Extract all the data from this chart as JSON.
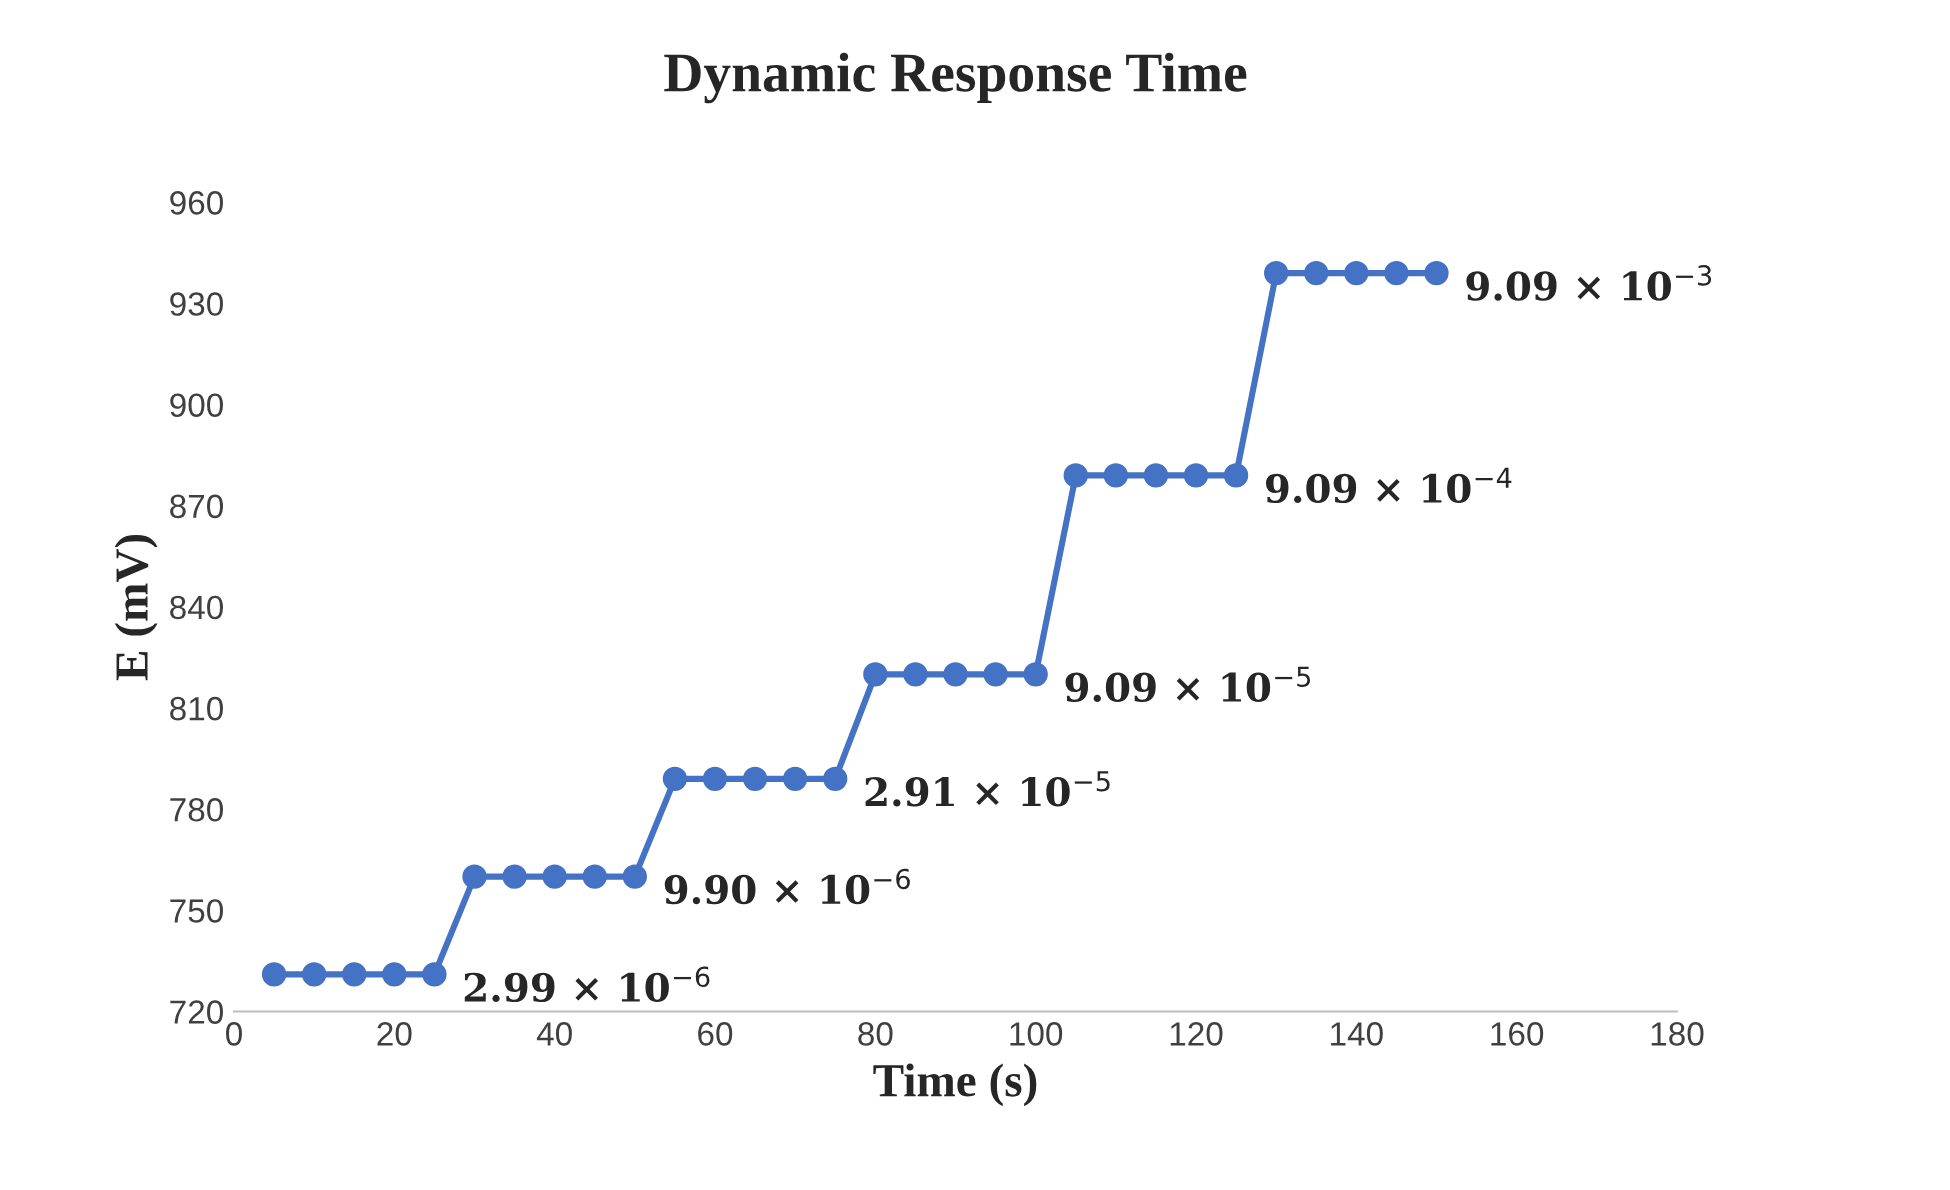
{
  "chart_data": {
    "type": "line",
    "title": "Dynamic Response Time",
    "xlabel": "Time (s)",
    "ylabel": "E (mV)",
    "x": [
      5,
      10,
      15,
      20,
      25,
      30,
      35,
      40,
      45,
      50,
      55,
      60,
      65,
      70,
      75,
      80,
      85,
      90,
      95,
      100,
      105,
      110,
      115,
      120,
      125,
      130,
      135,
      140,
      145,
      150
    ],
    "series": [
      {
        "color": "#4472c4",
        "values": [
          731,
          731,
          731,
          731,
          731,
          760,
          760,
          760,
          760,
          760,
          789,
          789,
          789,
          789,
          789,
          820,
          820,
          820,
          820,
          820,
          879,
          879,
          879,
          879,
          879,
          939,
          939,
          939,
          939,
          939
        ]
      }
    ],
    "xlim": [
      0,
      180
    ],
    "xticks": [
      0,
      20,
      40,
      60,
      80,
      100,
      120,
      140,
      160,
      180
    ],
    "ylim": [
      720,
      960
    ],
    "yticks": [
      720,
      750,
      780,
      810,
      840,
      870,
      900,
      930,
      960
    ],
    "marker": "circle",
    "line_style": "solid",
    "grid": false,
    "legend": false,
    "annotations": [
      {
        "text": "2.99 × 10$^{−6}$",
        "x": 25,
        "y": 731
      },
      {
        "text": "9.90 × 10$^{−6}$",
        "x": 50,
        "y": 760
      },
      {
        "text": "2.91 × 10$^{−5}$",
        "x": 75,
        "y": 789
      },
      {
        "text": "9.09 × 10$^{−5}$",
        "x": 100,
        "y": 820
      },
      {
        "text": "9.09 × 10$^{−4}$",
        "x": 125,
        "y": 879
      },
      {
        "text": "9.09 × 10$^{−3}$",
        "x": 150,
        "y": 939
      }
    ]
  }
}
